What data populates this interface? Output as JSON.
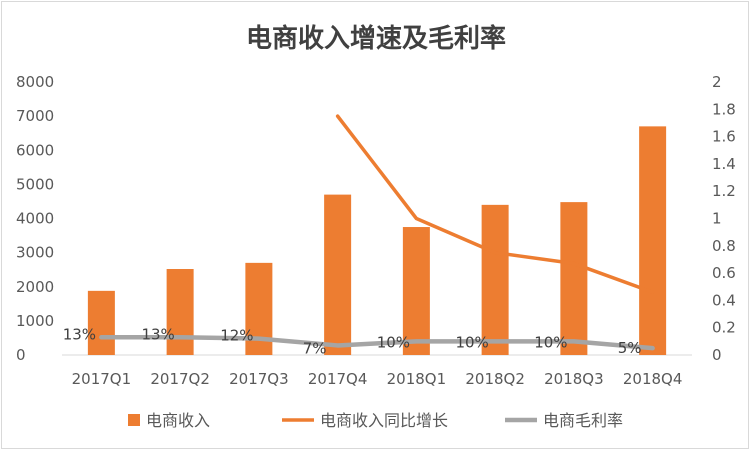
{
  "chart_data": {
    "type": "bar",
    "title": "电商收入增速及毛利率",
    "categories": [
      "2017Q1",
      "2017Q2",
      "2017Q3",
      "2017Q4",
      "2018Q1",
      "2018Q2",
      "2018Q3",
      "2018Q4"
    ],
    "y_left": {
      "ticks": [
        "0",
        "1000",
        "2000",
        "3000",
        "4000",
        "5000",
        "6000",
        "7000",
        "8000"
      ],
      "ylim": [
        0,
        8000
      ]
    },
    "y_right": {
      "ticks": [
        "0",
        "0.2",
        "0.4",
        "0.6",
        "0.8",
        "1",
        "1.2",
        "1.4",
        "1.6",
        "1.8",
        "2"
      ],
      "ylim": [
        0,
        2
      ]
    },
    "series": [
      {
        "name": "电商收入",
        "type": "bar",
        "axis": "left",
        "color": "#ED7D31",
        "values": [
          1880,
          2520,
          2700,
          4700,
          3750,
          4400,
          4480,
          6700
        ]
      },
      {
        "name": "电商收入同比增长",
        "type": "line",
        "axis": "right",
        "color": "#ED7D31",
        "values": [
          null,
          null,
          null,
          1.75,
          1.0,
          0.75,
          0.67,
          0.46
        ]
      },
      {
        "name": "电商毛利率",
        "type": "line",
        "axis": "right",
        "color": "#A5A5A5",
        "values": [
          0.13,
          0.13,
          0.12,
          0.07,
          0.1,
          0.1,
          0.1,
          0.05
        ],
        "labels": [
          "13%",
          "13%",
          "12%",
          "7%",
          "10%",
          "10%",
          "10%",
          "5%"
        ]
      }
    ],
    "legend": "bottom",
    "grid": false
  }
}
